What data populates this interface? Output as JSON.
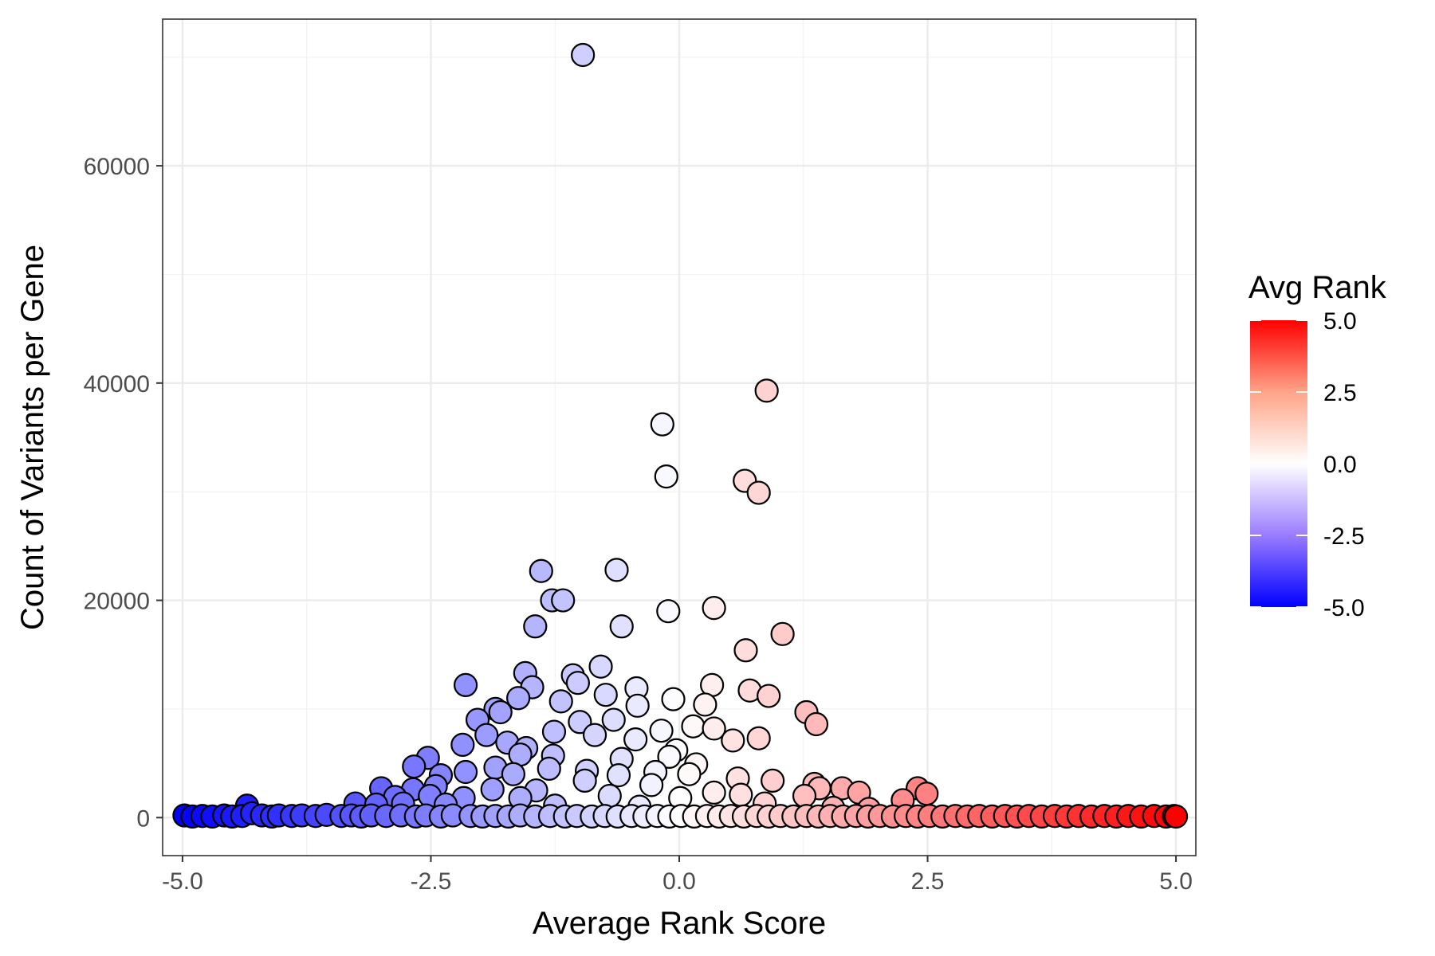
{
  "chart_data": {
    "type": "scatter",
    "xlabel": "Average Rank Score",
    "ylabel": "Count of Variants per Gene",
    "xlim": [
      -5.2,
      5.2
    ],
    "ylim": [
      -3500,
      73500
    ],
    "x_ticks": [
      -5.0,
      -2.5,
      0.0,
      2.5,
      5.0
    ],
    "x_tick_labels": [
      "-5.0",
      "-2.5",
      "0.0",
      "2.5",
      "5.0"
    ],
    "y_ticks": [
      0,
      20000,
      40000,
      60000
    ],
    "y_tick_labels": [
      "0",
      "20000",
      "40000",
      "60000"
    ],
    "grid": true,
    "theme": "bw",
    "legend": {
      "title": "Avg Rank",
      "position": "right",
      "type": "colorbar",
      "limits": [
        -5.0,
        5.0
      ],
      "breaks": [
        5.0,
        2.5,
        0.0,
        -2.5,
        -5.0
      ],
      "labels": [
        "5.0",
        "2.5",
        "0.0",
        "-2.5",
        "-5.0"
      ]
    },
    "color_scale": {
      "low": "#0000ff",
      "mid": "#ffffff",
      "high": "#ff0000",
      "midpoint": 0
    },
    "points": [
      [
        -0.97,
        70200
      ],
      [
        0.88,
        39300
      ],
      [
        -0.17,
        36200
      ],
      [
        -0.13,
        31400
      ],
      [
        0.66,
        31000
      ],
      [
        0.8,
        29900
      ],
      [
        -1.39,
        22700
      ],
      [
        -0.63,
        22800
      ],
      [
        -1.28,
        20000
      ],
      [
        -1.17,
        20000
      ],
      [
        -0.11,
        19000
      ],
      [
        0.35,
        19300
      ],
      [
        -1.45,
        17600
      ],
      [
        -0.58,
        17600
      ],
      [
        1.04,
        16900
      ],
      [
        0.67,
        15400
      ],
      [
        -0.79,
        13900
      ],
      [
        -1.55,
        13300
      ],
      [
        -1.07,
        13100
      ],
      [
        -1.02,
        12400
      ],
      [
        -2.15,
        12200
      ],
      [
        -1.48,
        12000
      ],
      [
        -0.43,
        11900
      ],
      [
        0.33,
        12200
      ],
      [
        -0.74,
        11300
      ],
      [
        0.71,
        11700
      ],
      [
        0.9,
        11200
      ],
      [
        -1.62,
        11000
      ],
      [
        -0.06,
        10900
      ],
      [
        -1.19,
        10700
      ],
      [
        -1.85,
        10000
      ],
      [
        -0.42,
        10300
      ],
      [
        0.26,
        10400
      ],
      [
        1.28,
        9700
      ],
      [
        -2.03,
        9000
      ],
      [
        -1.8,
        9700
      ],
      [
        -1.0,
        8800
      ],
      [
        -0.66,
        9000
      ],
      [
        1.38,
        8600
      ],
      [
        -1.26,
        7900
      ],
      [
        -0.18,
        8000
      ],
      [
        0.14,
        8400
      ],
      [
        0.35,
        8200
      ],
      [
        -1.94,
        7600
      ],
      [
        -0.85,
        7600
      ],
      [
        -0.44,
        7200
      ],
      [
        0.8,
        7300
      ],
      [
        0.54,
        7100
      ],
      [
        -1.73,
        6900
      ],
      [
        -2.18,
        6700
      ],
      [
        -1.54,
        6400
      ],
      [
        -0.03,
        6200
      ],
      [
        -2.53,
        5500
      ],
      [
        -1.6,
        5800
      ],
      [
        -1.27,
        5700
      ],
      [
        -0.58,
        5400
      ],
      [
        -0.1,
        5600
      ],
      [
        0.17,
        4900
      ],
      [
        -2.67,
        4700
      ],
      [
        -1.85,
        4600
      ],
      [
        -1.31,
        4500
      ],
      [
        -0.93,
        4300
      ],
      [
        -0.24,
        4200
      ],
      [
        -2.15,
        4200
      ],
      [
        -2.4,
        3900
      ],
      [
        -1.67,
        4000
      ],
      [
        -0.61,
        3900
      ],
      [
        0.1,
        4000
      ],
      [
        0.59,
        3600
      ],
      [
        -0.95,
        3400
      ],
      [
        0.94,
        3400
      ],
      [
        1.36,
        3100
      ],
      [
        -0.28,
        3000
      ],
      [
        -3.0,
        2700
      ],
      [
        -2.68,
        2600
      ],
      [
        -2.45,
        2900
      ],
      [
        -1.88,
        2600
      ],
      [
        -1.44,
        2500
      ],
      [
        1.41,
        2700
      ],
      [
        1.64,
        2700
      ],
      [
        1.81,
        2300
      ],
      [
        2.4,
        2700
      ],
      [
        2.49,
        2200
      ],
      [
        -2.86,
        1900
      ],
      [
        -2.51,
        2000
      ],
      [
        -2.17,
        1800
      ],
      [
        -1.6,
        1800
      ],
      [
        -0.7,
        2000
      ],
      [
        0.01,
        1800
      ],
      [
        0.35,
        2300
      ],
      [
        0.62,
        2100
      ],
      [
        1.26,
        2000
      ],
      [
        2.25,
        1600
      ],
      [
        -4.35,
        1100
      ],
      [
        -3.26,
        1300
      ],
      [
        -3.05,
        1200
      ],
      [
        -2.78,
        1300
      ],
      [
        -2.35,
        1200
      ],
      [
        -1.25,
        1100
      ],
      [
        -0.4,
        1000
      ],
      [
        0.86,
        1300
      ],
      [
        1.55,
        900
      ],
      [
        1.91,
        800
      ],
      [
        -4.98,
        200
      ],
      [
        -4.9,
        100
      ],
      [
        -4.8,
        150
      ],
      [
        -4.7,
        100
      ],
      [
        -4.58,
        200
      ],
      [
        -4.5,
        100
      ],
      [
        -4.4,
        150
      ],
      [
        -4.3,
        400
      ],
      [
        -4.2,
        200
      ],
      [
        -4.1,
        100
      ],
      [
        -4.03,
        200
      ],
      [
        -3.9,
        150
      ],
      [
        -3.8,
        200
      ],
      [
        -3.66,
        150
      ],
      [
        -3.55,
        250
      ],
      [
        -3.4,
        150
      ],
      [
        -3.3,
        200
      ],
      [
        -3.2,
        100
      ],
      [
        -3.1,
        200
      ],
      [
        -2.95,
        150
      ],
      [
        -2.8,
        200
      ],
      [
        -2.65,
        100
      ],
      [
        -2.55,
        200
      ],
      [
        -2.4,
        100
      ],
      [
        -2.28,
        200
      ],
      [
        -2.1,
        150
      ],
      [
        -1.98,
        100
      ],
      [
        -1.85,
        150
      ],
      [
        -1.72,
        100
      ],
      [
        -1.6,
        200
      ],
      [
        -1.45,
        100
      ],
      [
        -1.3,
        150
      ],
      [
        -1.15,
        100
      ],
      [
        -1.03,
        150
      ],
      [
        -0.88,
        100
      ],
      [
        -0.75,
        150
      ],
      [
        -0.62,
        100
      ],
      [
        -0.48,
        150
      ],
      [
        -0.35,
        100
      ],
      [
        -0.22,
        150
      ],
      [
        -0.1,
        100
      ],
      [
        0.02,
        150
      ],
      [
        0.15,
        100
      ],
      [
        0.28,
        150
      ],
      [
        0.4,
        100
      ],
      [
        0.52,
        150
      ],
      [
        0.65,
        100
      ],
      [
        0.78,
        150
      ],
      [
        0.9,
        100
      ],
      [
        1.02,
        150
      ],
      [
        1.15,
        100
      ],
      [
        1.28,
        150
      ],
      [
        1.4,
        100
      ],
      [
        1.52,
        150
      ],
      [
        1.65,
        100
      ],
      [
        1.78,
        150
      ],
      [
        1.9,
        100
      ],
      [
        2.02,
        150
      ],
      [
        2.15,
        100
      ],
      [
        2.28,
        150
      ],
      [
        2.4,
        100
      ],
      [
        2.52,
        150
      ],
      [
        2.65,
        100
      ],
      [
        2.78,
        150
      ],
      [
        2.9,
        100
      ],
      [
        3.02,
        150
      ],
      [
        3.15,
        100
      ],
      [
        3.28,
        150
      ],
      [
        3.4,
        100
      ],
      [
        3.52,
        150
      ],
      [
        3.65,
        100
      ],
      [
        3.78,
        150
      ],
      [
        3.9,
        100
      ],
      [
        4.02,
        150
      ],
      [
        4.15,
        100
      ],
      [
        4.28,
        150
      ],
      [
        4.4,
        100
      ],
      [
        4.52,
        150
      ],
      [
        4.65,
        100
      ],
      [
        4.78,
        150
      ],
      [
        4.9,
        100
      ],
      [
        4.98,
        150
      ],
      [
        5.0,
        100
      ]
    ]
  }
}
